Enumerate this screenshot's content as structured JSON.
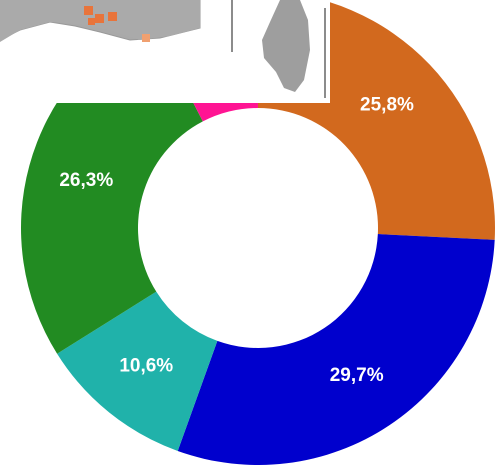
{
  "chart_data": {
    "type": "donut",
    "categories": [
      null,
      null,
      null,
      null,
      null
    ],
    "values": [
      25.8,
      29.7,
      10.6,
      26.3,
      7.6
    ],
    "value_labels": [
      "25,8%",
      "29,7%",
      "10,6%",
      "26,3%",
      null
    ],
    "colors": [
      "#d2691e",
      "#0000cd",
      "#20b2aa",
      "#228b22",
      "#ff1493"
    ]
  }
}
